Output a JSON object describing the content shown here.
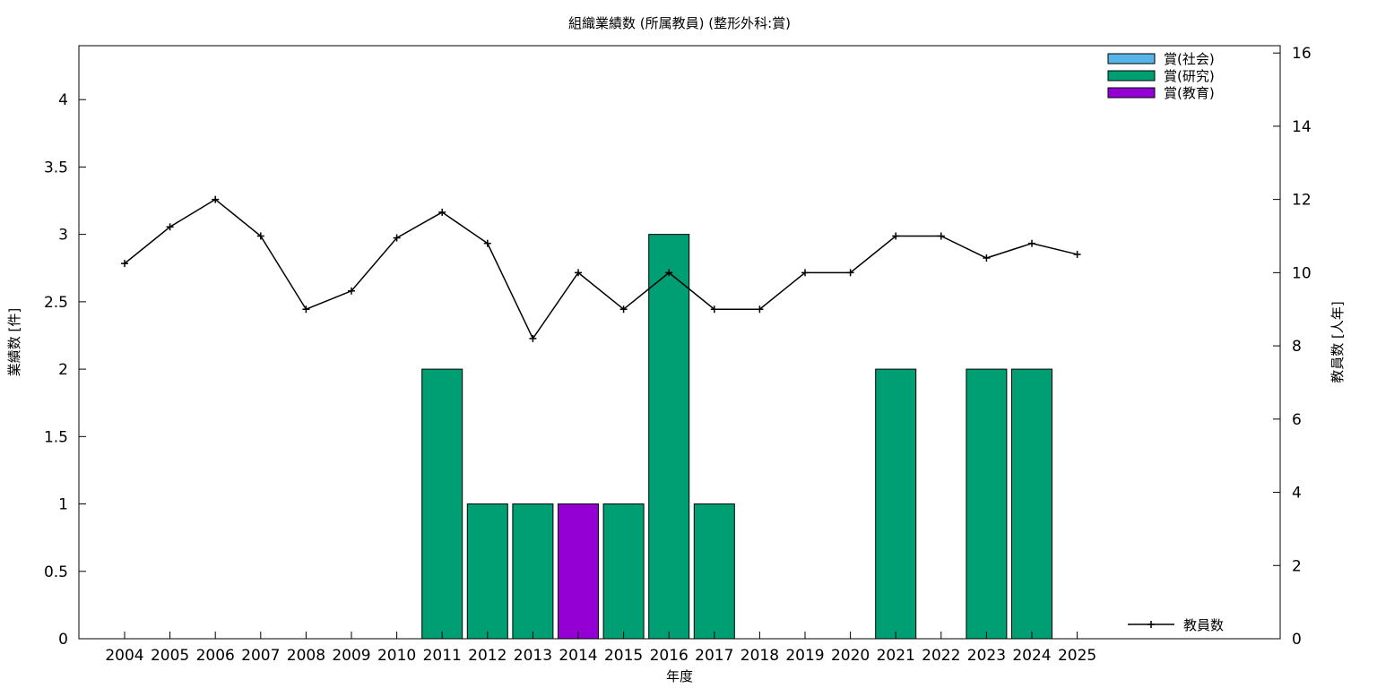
{
  "chart_data": {
    "type": "bar",
    "title": "組織業績数 (所属教員) (整形外科:賞)",
    "xlabel": "年度",
    "ylabel": "業績数 [件]",
    "y2label": "教員数 [人年]",
    "categories": [
      "2004",
      "2005",
      "2006",
      "2007",
      "2008",
      "2009",
      "2010",
      "2011",
      "2012",
      "2013",
      "2014",
      "2015",
      "2016",
      "2017",
      "2018",
      "2019",
      "2020",
      "2021",
      "2022",
      "2023",
      "2024",
      "2025"
    ],
    "ylim": [
      0,
      4.4
    ],
    "y2lim": [
      0,
      16.2
    ],
    "yticks": [
      "0",
      "0.5",
      "1",
      "1.5",
      "2",
      "2.5",
      "3",
      "3.5",
      "4"
    ],
    "y2ticks": [
      "0",
      "2",
      "4",
      "6",
      "8",
      "10",
      "12",
      "14",
      "16"
    ],
    "stacked": true,
    "series": [
      {
        "name": "賞(社会)",
        "color": "#56b4e9",
        "values": [
          0,
          0,
          0,
          0,
          0,
          0,
          0,
          0,
          0,
          0,
          0,
          0,
          0,
          0,
          0,
          0,
          0,
          0,
          0,
          0,
          0,
          0
        ]
      },
      {
        "name": "賞(研究)",
        "color": "#009e73",
        "values": [
          0,
          0,
          0,
          0,
          0,
          0,
          0,
          2,
          1,
          1,
          0,
          1,
          3,
          1,
          0,
          0,
          0,
          2,
          0,
          2,
          2,
          0
        ]
      },
      {
        "name": "賞(教育)",
        "color": "#9400d3",
        "values": [
          0,
          0,
          0,
          0,
          0,
          0,
          0,
          0,
          0,
          0,
          1,
          0,
          0,
          0,
          0,
          0,
          0,
          0,
          0,
          0,
          0,
          0
        ]
      }
    ],
    "line": {
      "name": "教員数",
      "color": "#000000",
      "axis": "y2",
      "values": [
        10.25,
        11.25,
        12.0,
        11.0,
        9.0,
        9.5,
        10.95,
        11.65,
        10.8,
        8.2,
        10.0,
        9.0,
        10.0,
        9.0,
        9.0,
        10.0,
        10.0,
        11.0,
        11.0,
        10.4,
        10.8,
        10.5
      ]
    },
    "grid": false,
    "legend_bars": "top-right",
    "legend_line": "bottom-right"
  }
}
